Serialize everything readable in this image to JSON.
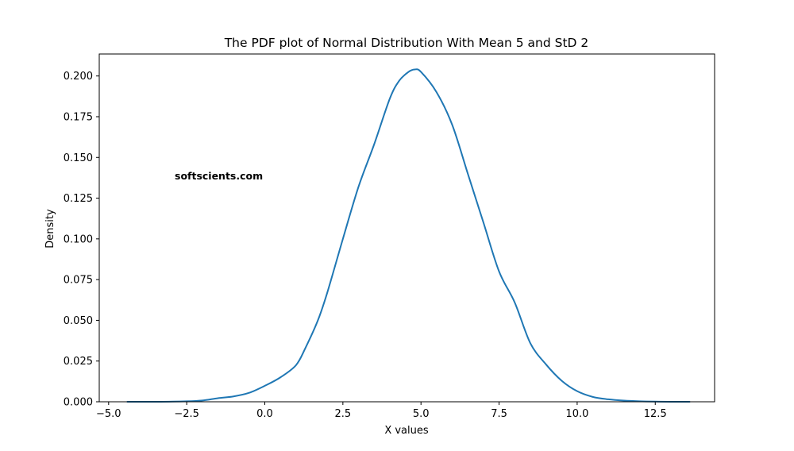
{
  "chart_data": {
    "type": "line",
    "title": "The PDF plot of Normal Distribution With Mean 5 and StD 2",
    "xlabel": "X values",
    "ylabel": "Density",
    "xlim": [
      -5.3,
      14.4
    ],
    "ylim": [
      0,
      0.2135
    ],
    "x_ticks": [
      -5.0,
      -2.5,
      0.0,
      2.5,
      5.0,
      7.5,
      10.0,
      12.5
    ],
    "x_tick_labels": [
      "−5.0",
      "−2.5",
      "0.0",
      "2.5",
      "5.0",
      "7.5",
      "10.0",
      "12.5"
    ],
    "y_ticks": [
      0.0,
      0.025,
      0.05,
      0.075,
      0.1,
      0.125,
      0.15,
      0.175,
      0.2
    ],
    "y_tick_labels": [
      "0.000",
      "0.025",
      "0.050",
      "0.075",
      "0.100",
      "0.125",
      "0.150",
      "0.175",
      "0.200"
    ],
    "grid": false,
    "series": [
      {
        "color": "#1f77b4",
        "x": [
          -4.4,
          -3.5,
          -2.5,
          -2.0,
          -1.5,
          -1.0,
          -0.5,
          0.0,
          0.5,
          1.0,
          1.3,
          1.7,
          2.0,
          2.5,
          3.0,
          3.5,
          4.0,
          4.3,
          4.6,
          4.8,
          5.0,
          5.5,
          6.0,
          6.5,
          7.0,
          7.5,
          8.0,
          8.5,
          9.0,
          9.5,
          10.0,
          10.5,
          11.0,
          11.5,
          12.0,
          12.5,
          13.0,
          13.6
        ],
        "y": [
          0.0,
          0.0,
          0.0003,
          0.0008,
          0.0022,
          0.0033,
          0.0055,
          0.0098,
          0.015,
          0.0225,
          0.033,
          0.05,
          0.067,
          0.1,
          0.132,
          0.158,
          0.186,
          0.197,
          0.2025,
          0.204,
          0.2025,
          0.19,
          0.17,
          0.14,
          0.11,
          0.08,
          0.061,
          0.036,
          0.023,
          0.013,
          0.0065,
          0.003,
          0.0015,
          0.0007,
          0.0003,
          0.0001,
          0.0,
          0.0
        ]
      }
    ],
    "annotations": [
      {
        "text": "softscients.com"
      }
    ]
  }
}
